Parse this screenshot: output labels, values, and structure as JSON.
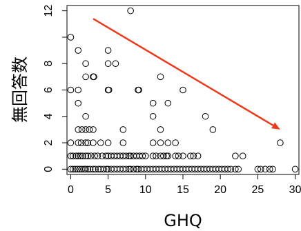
{
  "chart_data": {
    "type": "scatter",
    "xlabel": "GHQ",
    "ylabel": "無回答数",
    "xlim": [
      -0.5,
      30.5
    ],
    "ylim": [
      -0.4,
      12.4
    ],
    "xticks": [
      0,
      5,
      10,
      15,
      20,
      25,
      30
    ],
    "yticks": [
      0,
      2,
      4,
      6,
      8,
      10,
      12
    ],
    "xtick_labels": [
      "0",
      "5",
      "10",
      "15",
      "20",
      "25",
      "30"
    ],
    "ytick_labels": [
      "0",
      "2",
      "4",
      "6",
      "8",
      "",
      "12"
    ],
    "grid": false,
    "legend": "none",
    "marker": "open-circle",
    "points": [
      [
        0,
        0
      ],
      [
        0.3,
        0
      ],
      [
        0.6,
        0
      ],
      [
        0.9,
        0
      ],
      [
        1.2,
        0
      ],
      [
        1.5,
        0
      ],
      [
        1.8,
        0
      ],
      [
        2,
        0
      ],
      [
        2.3,
        0
      ],
      [
        2.6,
        0
      ],
      [
        3,
        0
      ],
      [
        3.3,
        0
      ],
      [
        3.7,
        0
      ],
      [
        4,
        0
      ],
      [
        4.4,
        0
      ],
      [
        4.8,
        0
      ],
      [
        5,
        0
      ],
      [
        5.4,
        0
      ],
      [
        5.8,
        0
      ],
      [
        6.2,
        0
      ],
      [
        6.6,
        0
      ],
      [
        7,
        0
      ],
      [
        7.4,
        0
      ],
      [
        7.8,
        0
      ],
      [
        8,
        0
      ],
      [
        8.4,
        0
      ],
      [
        8.8,
        0
      ],
      [
        9,
        0
      ],
      [
        9.4,
        0
      ],
      [
        9.8,
        0
      ],
      [
        10.2,
        0
      ],
      [
        10.6,
        0
      ],
      [
        11,
        0
      ],
      [
        11.4,
        0
      ],
      [
        11.8,
        0
      ],
      [
        12.2,
        0
      ],
      [
        12.6,
        0
      ],
      [
        13,
        0
      ],
      [
        13.4,
        0
      ],
      [
        13.8,
        0
      ],
      [
        14.2,
        0
      ],
      [
        14.6,
        0
      ],
      [
        15,
        0
      ],
      [
        15.4,
        0
      ],
      [
        15.8,
        0
      ],
      [
        16.2,
        0
      ],
      [
        16.6,
        0
      ],
      [
        17,
        0
      ],
      [
        17.4,
        0
      ],
      [
        17.8,
        0
      ],
      [
        18.2,
        0
      ],
      [
        18.6,
        0
      ],
      [
        19,
        0
      ],
      [
        19.4,
        0
      ],
      [
        19.8,
        0
      ],
      [
        20.2,
        0
      ],
      [
        20.6,
        0
      ],
      [
        21,
        0
      ],
      [
        21.4,
        0
      ],
      [
        22,
        0
      ],
      [
        22.4,
        0
      ],
      [
        25,
        0
      ],
      [
        25.4,
        0
      ],
      [
        26,
        0
      ],
      [
        26.6,
        0
      ],
      [
        27,
        0
      ],
      [
        30,
        0
      ],
      [
        0,
        1
      ],
      [
        0.3,
        1
      ],
      [
        0.7,
        1
      ],
      [
        1,
        1
      ],
      [
        1.3,
        1
      ],
      [
        1.6,
        1
      ],
      [
        2,
        1
      ],
      [
        2.3,
        1
      ],
      [
        2.7,
        1
      ],
      [
        3.2,
        1
      ],
      [
        3.6,
        1
      ],
      [
        4.2,
        1
      ],
      [
        4.7,
        1
      ],
      [
        5,
        1
      ],
      [
        5.4,
        1
      ],
      [
        5.8,
        1
      ],
      [
        6.2,
        1
      ],
      [
        6.6,
        1
      ],
      [
        7,
        1
      ],
      [
        7.4,
        1
      ],
      [
        7.8,
        1
      ],
      [
        8,
        1
      ],
      [
        8.4,
        1
      ],
      [
        8.8,
        1
      ],
      [
        9.2,
        1
      ],
      [
        9.6,
        1
      ],
      [
        10,
        1
      ],
      [
        11,
        1
      ],
      [
        11.4,
        1
      ],
      [
        12,
        1
      ],
      [
        12.4,
        1
      ],
      [
        12.8,
        1
      ],
      [
        13,
        1
      ],
      [
        14,
        1
      ],
      [
        14.4,
        1
      ],
      [
        15,
        1
      ],
      [
        16,
        1
      ],
      [
        16.4,
        1
      ],
      [
        17,
        1
      ],
      [
        22,
        1
      ],
      [
        23,
        1
      ],
      [
        0,
        2
      ],
      [
        1,
        2
      ],
      [
        1.4,
        2
      ],
      [
        2,
        2
      ],
      [
        2.3,
        2
      ],
      [
        3,
        2
      ],
      [
        4,
        2
      ],
      [
        5,
        2
      ],
      [
        7,
        2
      ],
      [
        11,
        2
      ],
      [
        12,
        2
      ],
      [
        13,
        2
      ],
      [
        14,
        2
      ],
      [
        28,
        2
      ],
      [
        1,
        3
      ],
      [
        1.5,
        3
      ],
      [
        2,
        3
      ],
      [
        2.5,
        3
      ],
      [
        3,
        3
      ],
      [
        7,
        3
      ],
      [
        12,
        3
      ],
      [
        19,
        3
      ],
      [
        2,
        4
      ],
      [
        11,
        4
      ],
      [
        18,
        4
      ],
      [
        1,
        5
      ],
      [
        11,
        5
      ],
      [
        13,
        5
      ],
      [
        0,
        6
      ],
      [
        1,
        6
      ],
      [
        5,
        6
      ],
      [
        5.1,
        6
      ],
      [
        9,
        6
      ],
      [
        9.1,
        6
      ],
      [
        15,
        6
      ],
      [
        2,
        7
      ],
      [
        3,
        7
      ],
      [
        3.1,
        7
      ],
      [
        12,
        7
      ],
      [
        2,
        8
      ],
      [
        5,
        8
      ],
      [
        6,
        8
      ],
      [
        1,
        9
      ],
      [
        5,
        9
      ],
      [
        0,
        10
      ],
      [
        8,
        12
      ]
    ],
    "trend_arrow": {
      "from": [
        3,
        11.4
      ],
      "to": [
        28,
        3
      ],
      "color": "#ee3a1c"
    }
  }
}
